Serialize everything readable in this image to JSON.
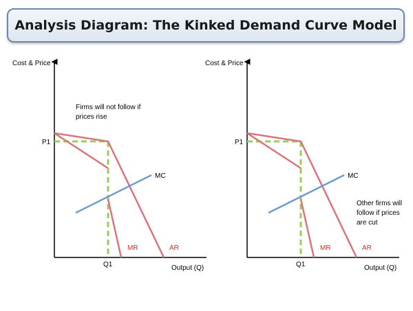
{
  "title": "Analysis Diagram: The Kinked Demand Curve Model",
  "colors": {
    "demand_curve": "#d9747a",
    "mc_curve": "#6f9bd1",
    "guide_dashes": "#9ccc5c",
    "axis": "#000000"
  },
  "left_panel": {
    "y_axis_label": "Cost & Price",
    "x_axis_label": "Output (Q)",
    "price_label": "P1",
    "quantity_label": "Q1",
    "mc_label": "MC",
    "mr_label": "MR",
    "ar_label": "AR",
    "annotation_line1": "Firms will not follow if",
    "annotation_line2": "prices rise"
  },
  "right_panel": {
    "y_axis_label": "Cost & Price",
    "x_axis_label": "Output (Q)",
    "price_label": "P1",
    "quantity_label": "Q1",
    "mc_label": "MC",
    "mr_label": "MR",
    "ar_label": "AR",
    "annotation_line1": "Other firms will",
    "annotation_line2": "follow if prices",
    "annotation_line3": "are cut"
  }
}
